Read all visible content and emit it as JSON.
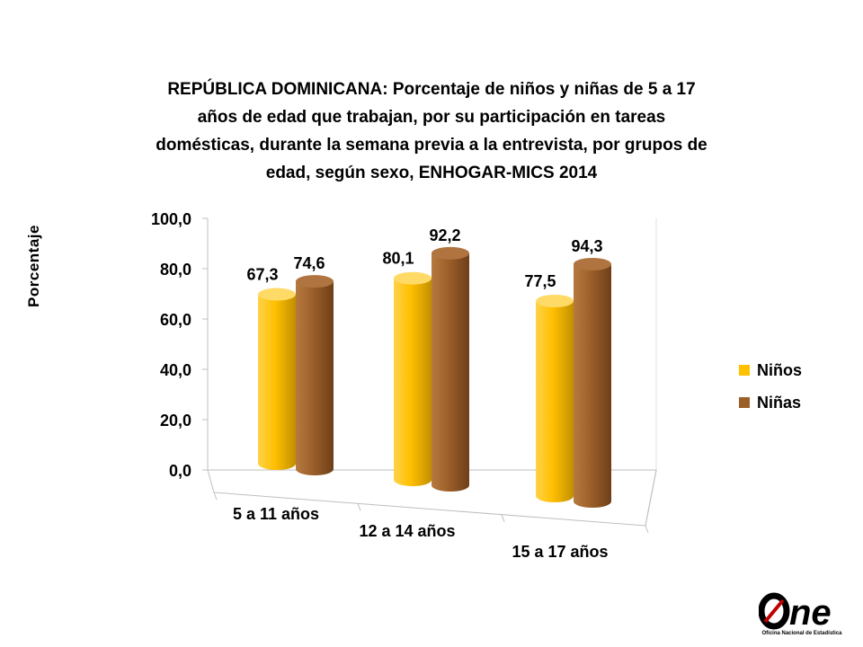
{
  "title_lines": [
    "REPÚBLICA DOMINICANA: Porcentaje de niños y niñas de 5 a 17",
    "años de edad que trabajan, por su participación en tareas",
    "domésticas, durante la semana previa a la entrevista, por grupos de",
    "edad, según  sexo, ENHOGAR-MICS 2014"
  ],
  "chart_data": {
    "type": "bar",
    "title": "REPÚBLICA DOMINICANA: Porcentaje de niños y niñas de 5 a 17 años de edad que trabajan, por su participación en tareas domésticas, durante la semana previa a la entrevista, por grupos de edad, según  sexo, ENHOGAR-MICS 2014",
    "ylabel": "Porcentaje",
    "xlabel": "",
    "categories": [
      "5 a 11 años",
      "12 a 14 años",
      "15 a 17 años"
    ],
    "series": [
      {
        "name": "Niños",
        "values": [
          67.3,
          80.1,
          77.5
        ],
        "labels": [
          "67,3",
          "80,1",
          "77,5"
        ],
        "color": "#FFC000"
      },
      {
        "name": "Niñas",
        "values": [
          74.6,
          92.2,
          94.3
        ],
        "labels": [
          "74,6",
          "92,2",
          "94,3"
        ],
        "color": "#9C5F2A"
      }
    ],
    "ylim": [
      0,
      100
    ],
    "yticks": [
      0,
      20,
      40,
      60,
      80,
      100
    ],
    "ytick_labels": [
      "0,0",
      "20,0",
      "40,0",
      "60,0",
      "80,0",
      "100,0"
    ],
    "grid": false,
    "legend": "right",
    "style": "3d-cylinder"
  },
  "logo": {
    "word": "ne",
    "subtitle": "Oficina Nacional de Estadística"
  }
}
